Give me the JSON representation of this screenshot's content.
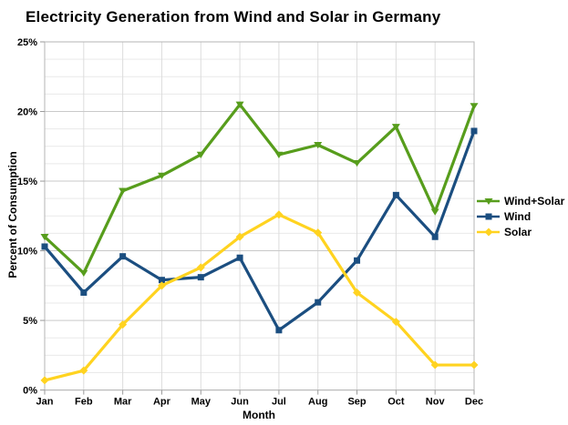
{
  "chart_data": {
    "type": "line",
    "title": "Electricity Generation from Wind and Solar in Germany",
    "xlabel": "Month",
    "ylabel": "Percent of Consumption",
    "ylim": [
      0,
      25
    ],
    "y_major_step": 5,
    "y_minor_step": 1.25,
    "y_tick_suffix": "%",
    "grid": true,
    "legend_position": "right",
    "categories": [
      "Jan",
      "Feb",
      "Mar",
      "Apr",
      "May",
      "Jun",
      "Jul",
      "Aug",
      "Sep",
      "Oct",
      "Nov",
      "Dec"
    ],
    "series": [
      {
        "name": "Wind+Solar",
        "color": "#579d1c",
        "marker": "triangle-down",
        "values": [
          11.0,
          8.4,
          14.3,
          15.4,
          16.9,
          20.5,
          16.9,
          17.6,
          16.3,
          18.9,
          12.8,
          20.4
        ]
      },
      {
        "name": "Wind",
        "color": "#1b4e80",
        "marker": "square",
        "values": [
          10.3,
          7.0,
          9.6,
          7.9,
          8.1,
          9.5,
          4.3,
          6.3,
          9.3,
          14.0,
          11.0,
          18.6
        ]
      },
      {
        "name": "Solar",
        "color": "#ffd320",
        "marker": "diamond",
        "values": [
          0.7,
          1.4,
          4.7,
          7.5,
          8.8,
          11.0,
          12.6,
          11.3,
          7.0,
          4.9,
          1.8,
          1.8
        ]
      }
    ],
    "colors": {
      "minor_grid": "#e9e9e9",
      "major_grid": "#c9c9c9",
      "vertical_grid": "#dcdcdc",
      "plot_border": "#b5b5b5",
      "tick": "#9a9a9a",
      "background": "#ffffff"
    }
  }
}
